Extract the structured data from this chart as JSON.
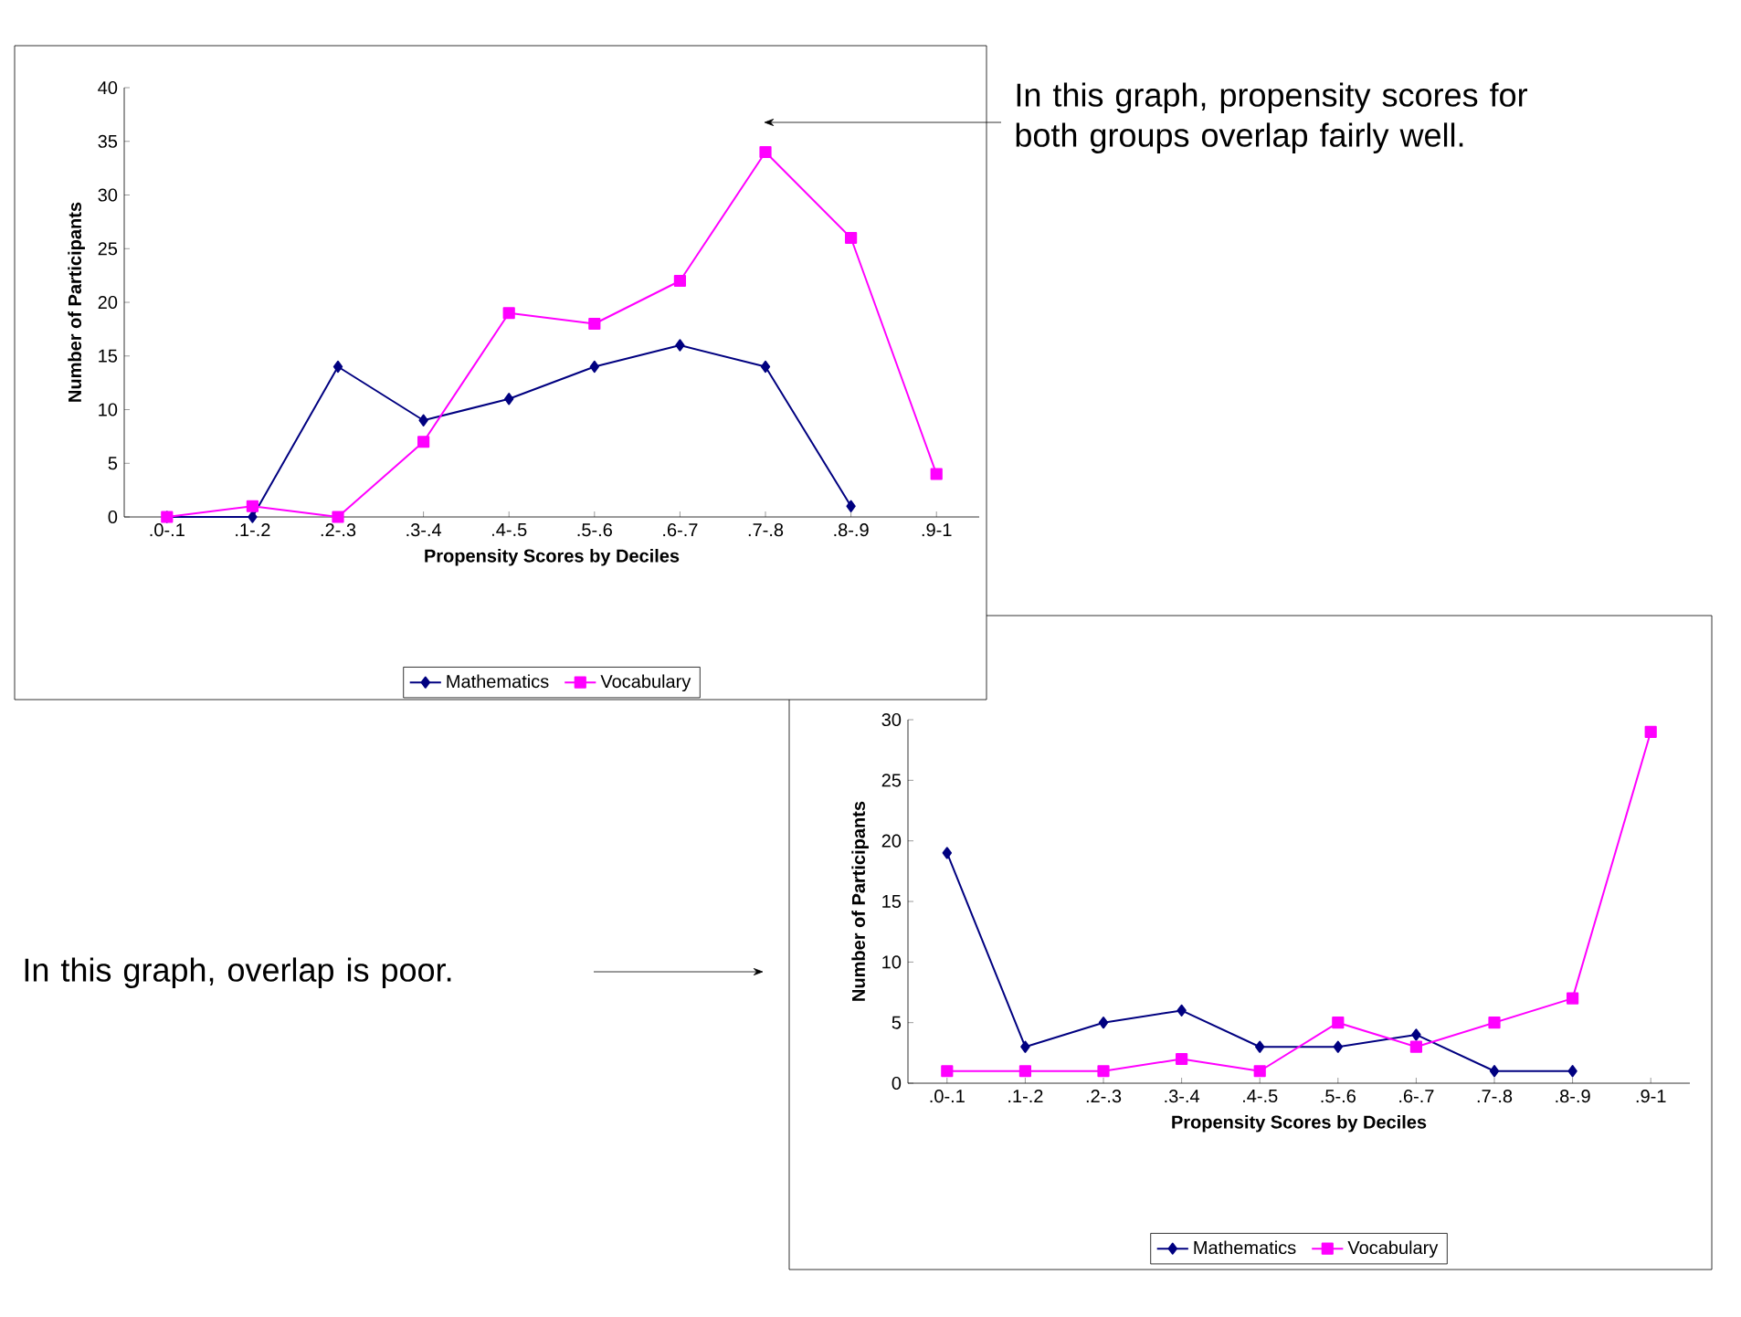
{
  "chart_data": [
    {
      "type": "line",
      "xlabel": "Propensity Scores by Deciles",
      "ylabel": "Number of Participants",
      "categories": [
        ".0-.1",
        ".1-.2",
        ".2-.3",
        ".3-.4",
        ".4-.5",
        ".5-.6",
        ".6-.7",
        ".7-.8",
        ".8-.9",
        ".9-1"
      ],
      "series": [
        {
          "name": "Mathematics",
          "color": "#000080",
          "marker": "diamond",
          "values": [
            0,
            0,
            14,
            9,
            11,
            14,
            16,
            14,
            1,
            null
          ]
        },
        {
          "name": "Vocabulary",
          "color": "#ff00ff",
          "marker": "square",
          "values": [
            0,
            1,
            0,
            7,
            19,
            18,
            22,
            34,
            26,
            4
          ]
        }
      ],
      "ylim": [
        0,
        40
      ],
      "yticks": [
        0,
        5,
        10,
        15,
        20,
        25,
        30,
        35,
        40
      ],
      "legend": "bottom",
      "grid": false,
      "annotations": [
        "In this graph, propensity scores for both groups overlap fairly well."
      ]
    },
    {
      "type": "line",
      "xlabel": "Propensity Scores by Deciles",
      "ylabel": "Number of Participants",
      "categories": [
        ".0-.1",
        ".1-.2",
        ".2-.3",
        ".3-.4",
        ".4-.5",
        ".5-.6",
        ".6-.7",
        ".7-.8",
        ".8-.9",
        ".9-1"
      ],
      "series": [
        {
          "name": "Mathematics",
          "color": "#000080",
          "marker": "diamond",
          "values": [
            19,
            3,
            5,
            6,
            3,
            3,
            4,
            1,
            1,
            null
          ]
        },
        {
          "name": "Vocabulary",
          "color": "#ff00ff",
          "marker": "square",
          "values": [
            1,
            1,
            1,
            2,
            1,
            5,
            3,
            5,
            7,
            29
          ]
        }
      ],
      "ylim": [
        0,
        30
      ],
      "yticks": [
        0,
        5,
        10,
        15,
        20,
        25,
        30
      ],
      "legend": "bottom",
      "grid": false,
      "annotations": [
        "In this graph, overlap is poor."
      ]
    }
  ]
}
